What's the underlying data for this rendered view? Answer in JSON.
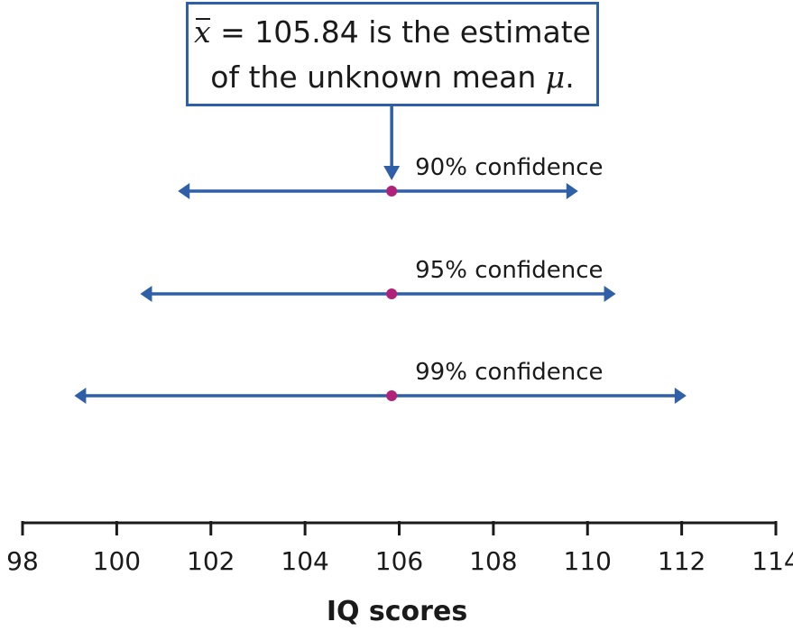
{
  "callout": {
    "xbar_symbol": "x",
    "line1_rest": " = 105.84 is the estimate",
    "line2_text": "of the unknown mean ",
    "mu_symbol": "μ",
    "line2_end": "."
  },
  "chart_data": {
    "type": "interval",
    "xlabel": "IQ scores",
    "xlim": [
      98,
      114
    ],
    "ticks": [
      98,
      100,
      102,
      104,
      106,
      108,
      110,
      112,
      114
    ],
    "tick_labels": [
      "98",
      "100",
      "102",
      "104",
      "106",
      "108",
      "110",
      "112",
      "114"
    ],
    "estimate": 105.84,
    "intervals": [
      {
        "label": "90% confidence",
        "low": 101.3,
        "high": 109.8,
        "center": 105.84
      },
      {
        "label": "95% confidence",
        "low": 100.5,
        "high": 110.6,
        "center": 105.84
      },
      {
        "label": "99% confidence",
        "low": 99.1,
        "high": 112.1,
        "center": 105.84
      }
    ],
    "colors": {
      "interval": "#2f5fa6",
      "point": "#b0227a",
      "axis": "#1a1a1a"
    }
  }
}
